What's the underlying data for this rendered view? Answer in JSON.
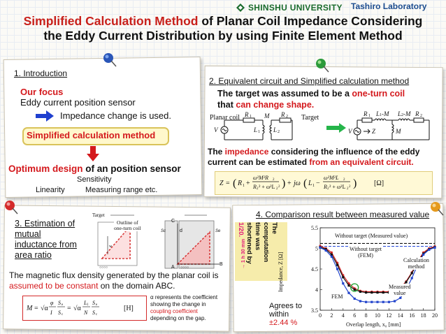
{
  "header": {
    "university": "SHINSHU UNIVERSITY",
    "laboratory": "Tashiro Laboratory"
  },
  "title": {
    "line1_red": "Simplified Calculation Method",
    "line1_rest": " of Planar Coil Impedance Considering",
    "line2": "the Eddy Current Distribution by using Finite Element Method"
  },
  "intro": {
    "heading": "1. Introduction",
    "focus_label": "Our focus",
    "focus_item": "Eddy current position sensor",
    "impedance_note": "Impedance change is used.",
    "method_box": "Simplified calculation method",
    "optimum_red": "Optimum design",
    "optimum_rest": " of an position sensor",
    "sensitivity": "Sensitivity",
    "linearity": "Linearity",
    "measuring_range": "Measuring range etc."
  },
  "equiv": {
    "heading": "2. Equivalent circuit and Simplified calculation method",
    "assumption_a": "The target was assumed to be a ",
    "assumption_red": "one-turn coil",
    "assumption_b": "that ",
    "assumption_red2": "can change shape.",
    "planar_coil": "Planar coil",
    "target": "Target",
    "r1": "R",
    "r2": "R",
    "m": "M",
    "l1": "L",
    "l2": "L",
    "v": "V",
    "z": "Z",
    "l1m": "L",
    "l2m": "L",
    "impedance_a": "The ",
    "impedance_red": "impedance",
    "impedance_b": " considering  the influence of the eddy current can be estimated ",
    "impedance_red2": "from an equivalent circuit.",
    "formula_unit": "[Ω]"
  },
  "mutual": {
    "heading_l1": "3. Estimation of",
    "heading_l2": "mutual",
    "heading_l3": "inductance from",
    "heading_l4": "area ratio",
    "target_label": "Target",
    "outline_label_l1": "Outline of",
    "outline_label_l2": "one-turn coil",
    "flux_a": "The magnetic flux density generated by the planar coil is ",
    "flux_red": "assumed to be constant",
    "flux_b": " on the domain ABC.",
    "formula_unit": "[H]",
    "alpha_note_a": "α represents the coefficient showing the change in ",
    "alpha_note_red": "coupling coefficient",
    "alpha_note_b": " depending on the gap.",
    "pt_a": "A",
    "pt_b": "B",
    "pt_c": "C",
    "pt_d": "d"
  },
  "comparison": {
    "heading": "4. Comparison result between measured value",
    "vertical_note_l1": "The",
    "vertical_note_l2": "computation",
    "vertical_note_l3": "time was",
    "vertical_note_l4": "shortened by",
    "vertical_note_red": "1/20.",
    "vertical_note_time": "→ 1 h 30 min",
    "agree_l1": "Agrees to",
    "agree_l2": "within",
    "agree_l3": "±2.44 %",
    "label_without_measured": "Without target (Measured value)",
    "label_without_fem_l1": "Without target",
    "label_without_fem_l2": "(FEM)",
    "label_calc_l1": "Calculation",
    "label_calc_l2": "method",
    "label_measured_l1": "Measured",
    "label_measured_l2": "value",
    "label_fem": "FEM"
  },
  "chart_data": {
    "type": "line",
    "xlabel": "Overlap length, x₀ [mm]",
    "ylabel": "Impedance, Z [Ω]",
    "xlim": [
      0,
      20
    ],
    "ylim": [
      3.5,
      5.5
    ],
    "xticks": [
      "0",
      "2",
      "4",
      "6",
      "8",
      "10",
      "12",
      "14",
      "16",
      "18",
      "20"
    ],
    "yticks": [
      "3.5",
      "4",
      "4.5",
      "5",
      "5.5"
    ],
    "series": [
      {
        "name": "Without target (Measured value)",
        "color": "#111111",
        "style": "dashed",
        "x": [
          0,
          20
        ],
        "y": [
          5.12,
          5.12
        ]
      },
      {
        "name": "Without target (FEM)",
        "color": "#3355dd",
        "style": "dashed",
        "x": [
          0,
          20
        ],
        "y": [
          5.05,
          5.05
        ]
      },
      {
        "name": "Calculation method",
        "color": "#d42020",
        "style": "solid",
        "x": [
          0,
          1,
          2,
          3,
          4,
          5,
          6,
          7,
          8,
          9,
          10,
          11,
          12,
          13,
          14,
          15,
          16,
          17,
          18,
          19,
          20
        ],
        "y": [
          5.06,
          5.0,
          4.9,
          4.65,
          4.35,
          4.15,
          4.03,
          3.97,
          3.95,
          3.95,
          3.95,
          3.95,
          3.95,
          3.97,
          4.05,
          4.2,
          4.42,
          4.68,
          4.9,
          5.0,
          5.05
        ]
      },
      {
        "name": "Measured value",
        "color": "#111111",
        "style": "solid",
        "x": [
          0,
          1,
          2,
          3,
          4,
          5,
          6,
          7,
          8,
          9,
          10,
          11,
          12,
          13,
          14,
          15,
          16,
          17,
          18,
          19,
          20
        ],
        "y": [
          5.03,
          4.98,
          4.85,
          4.6,
          4.3,
          4.1,
          4.0,
          3.95,
          3.93,
          3.93,
          3.93,
          3.93,
          3.93,
          3.95,
          4.02,
          4.18,
          4.4,
          4.65,
          4.87,
          4.98,
          5.03
        ]
      },
      {
        "name": "FEM",
        "color": "#2244cc",
        "style": "solid",
        "x": [
          0,
          1,
          2,
          3,
          4,
          5,
          6,
          7,
          8,
          9,
          10,
          11,
          12,
          13,
          14,
          15,
          16,
          17,
          18,
          19,
          20
        ],
        "y": [
          5.02,
          4.95,
          4.8,
          4.5,
          4.15,
          3.92,
          3.78,
          3.72,
          3.7,
          3.7,
          3.7,
          3.7,
          3.7,
          3.72,
          3.8,
          4.0,
          4.28,
          4.6,
          4.85,
          4.97,
          5.02
        ]
      }
    ]
  }
}
